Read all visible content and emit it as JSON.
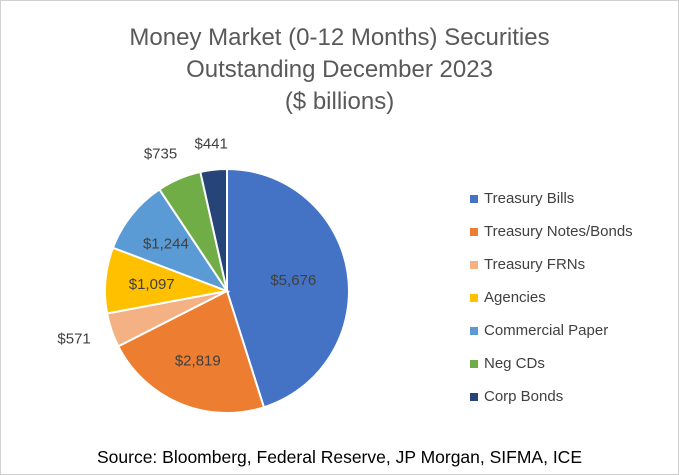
{
  "chart_data": {
    "type": "pie",
    "title_lines": [
      "Money Market (0-12 Months) Securities",
      "Outstanding December 2023",
      "($ billions)"
    ],
    "categories": [
      "Treasury Bills",
      "Treasury Notes/Bonds",
      "Treasury FRNs",
      "Agencies",
      "Commercial Paper",
      "Neg CDs",
      "Corp Bonds"
    ],
    "values": [
      5676,
      2819,
      571,
      1097,
      1244,
      735,
      441
    ],
    "data_labels": [
      "$5,676",
      "$2,819",
      "$571",
      "$1,097",
      "$1,244",
      "$735",
      "$441"
    ],
    "colors": [
      "#4472C4",
      "#ED7D31",
      "#F4B183",
      "#FFC000",
      "#5B9BD5",
      "#70AD47",
      "#264478"
    ],
    "legend_position": "right",
    "source": "Source:  Bloomberg, Federal Reserve, JP Morgan, SIFMA, ICE"
  }
}
